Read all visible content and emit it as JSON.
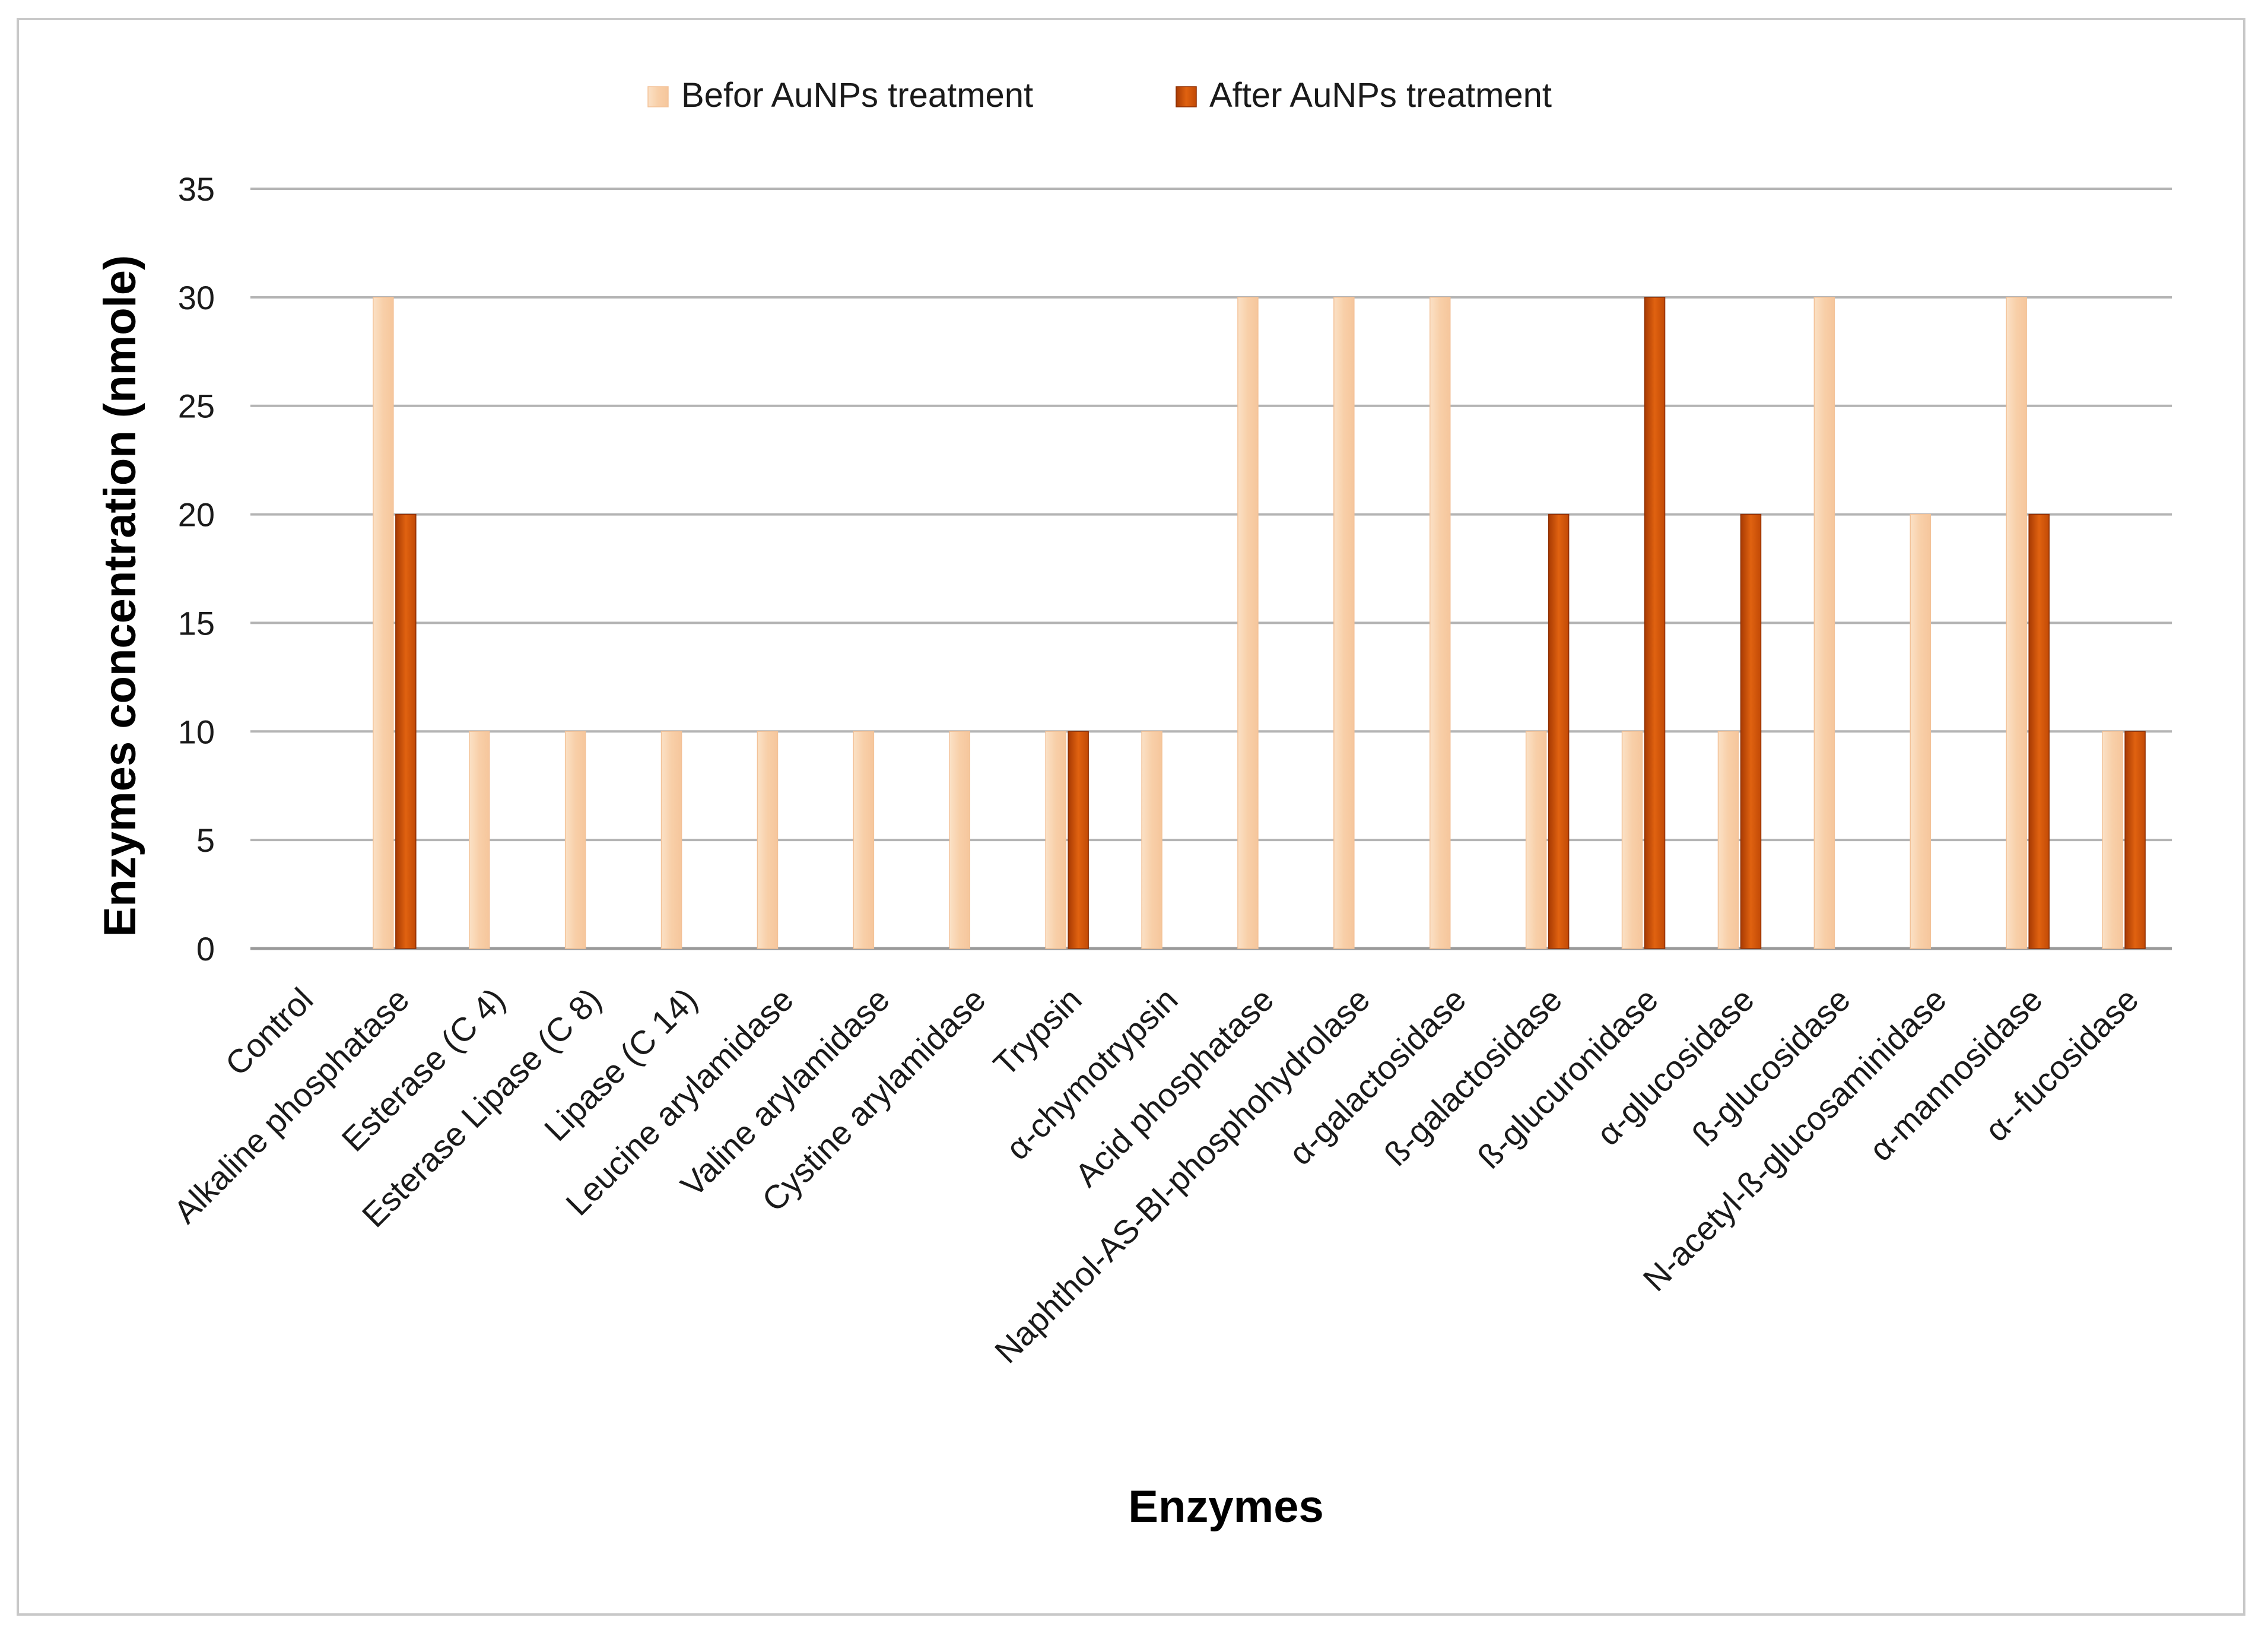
{
  "chart_data": {
    "type": "bar",
    "title": "",
    "xlabel": "Enzymes",
    "ylabel": "Enzymes concentration (nmole)",
    "ylim": [
      0,
      35
    ],
    "yticks": [
      0,
      5,
      10,
      15,
      20,
      25,
      30,
      35
    ],
    "grid": true,
    "legend_position": "top-center",
    "categories": [
      "Control",
      "Alkaline phosphatase",
      "Esterase (C 4)",
      "Esterase Lipase (C 8)",
      "Lipase (C 14)",
      "Leucine arylamidase",
      "Valine arylamidase",
      "Cystine arylamidase",
      "Trypsin",
      "α-chymotrypsin",
      "Acid phosphatase",
      "Naphthol-AS-BI-phosphohydrolase",
      "α-galactosidase",
      "ß-galactosidase",
      "ß-glucuronidase",
      "α-glucosidase",
      "ß-glucosidase",
      "N-acetyl-ß-glucosaminidase",
      "α-mannosidase",
      "α--fucosidase"
    ],
    "series": [
      {
        "name": "Befor AuNPs treatment",
        "color": "#f8cfa8",
        "values": [
          0,
          30,
          10,
          10,
          10,
          10,
          10,
          10,
          10,
          10,
          30,
          30,
          30,
          10,
          10,
          10,
          30,
          20,
          30,
          10
        ]
      },
      {
        "name": "After AuNPs  treatment",
        "color": "#c24a06",
        "values": [
          0,
          20,
          0,
          0,
          0,
          0,
          0,
          0,
          10,
          0,
          0,
          0,
          0,
          20,
          30,
          20,
          0,
          0,
          20,
          10
        ]
      }
    ]
  }
}
